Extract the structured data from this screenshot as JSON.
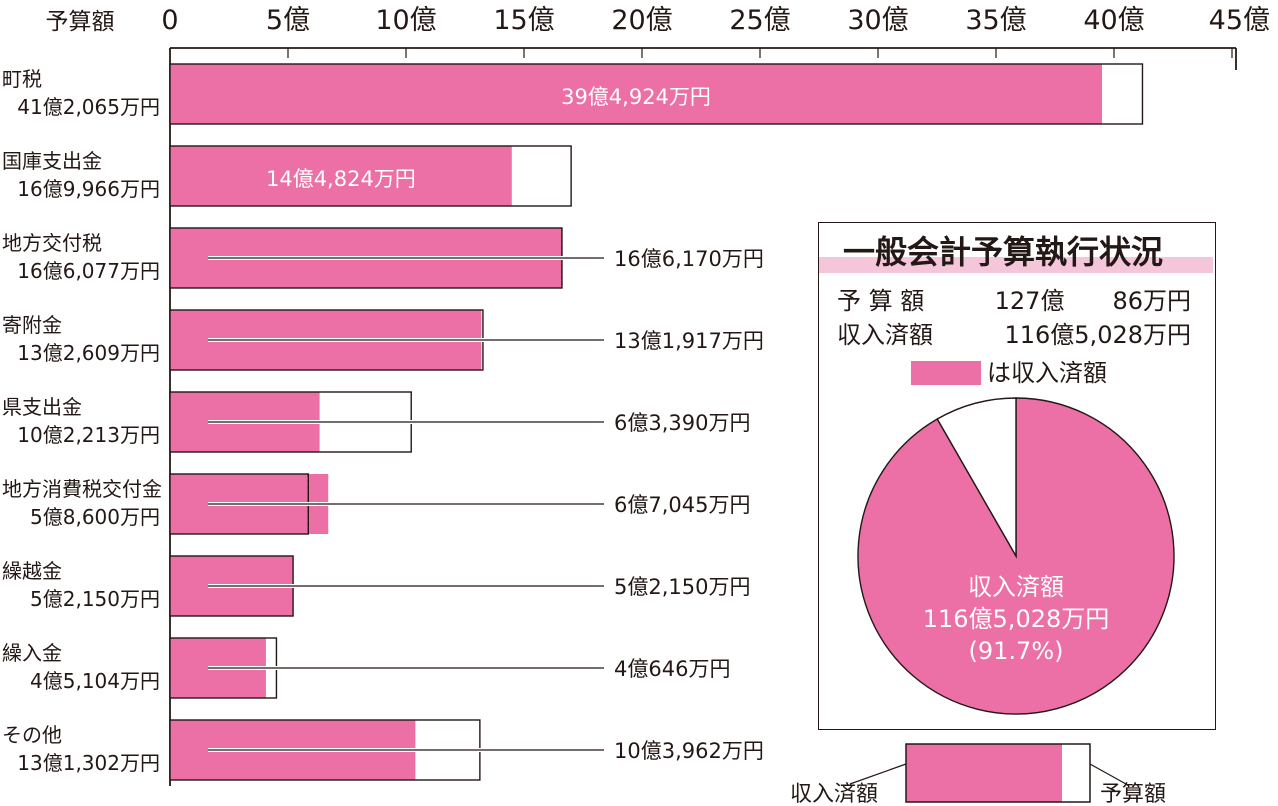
{
  "colors": {
    "received": "#ec6fa6",
    "budget": "#ffffff",
    "ink": "#231815",
    "title_band": "#f5c6da"
  },
  "chart_data": [
    {
      "type": "bar",
      "orientation": "horizontal",
      "axis_label": "予算額",
      "ticks": [
        "0",
        "5億",
        "10億",
        "15億",
        "20億",
        "25億",
        "30億",
        "35億",
        "40億",
        "45億"
      ],
      "xlim": [
        0,
        45
      ],
      "unit": "億円",
      "categories": [
        "町税",
        "国庫支出金",
        "地方交付税",
        "寄附金",
        "県支出金",
        "地方消費税交付金",
        "繰越金",
        "繰入金",
        "その他"
      ],
      "budget_labels": [
        "41億2,065万円",
        "16億9,966万円",
        "16億6,077万円",
        "13億2,609万円",
        "10億2,213万円",
        "5億8,600万円",
        "5億2,150万円",
        "4億5,104万円",
        "13億1,302万円"
      ],
      "received_labels": [
        "39億4,924万円",
        "14億4,824万円",
        "16億6,170万円",
        "13億1,917万円",
        "6億3,390万円",
        "6億7,045万円",
        "5億2,150万円",
        "4億646万円",
        "10億3,962万円"
      ],
      "series": [
        {
          "name": "予算額",
          "values": [
            41.2065,
            16.9966,
            16.6077,
            13.2609,
            10.2213,
            5.86,
            5.215,
            4.5104,
            13.1302
          ]
        },
        {
          "name": "収入済額",
          "values": [
            39.4924,
            14.4824,
            16.617,
            13.1917,
            6.339,
            6.7045,
            5.215,
            4.0646,
            10.3962
          ]
        }
      ]
    },
    {
      "type": "pie",
      "title": "一般会計予算執行状況",
      "summary": [
        {
          "label": "予 算 額",
          "value": "127億　　86万円"
        },
        {
          "label": "収入済額",
          "value": "116億5,028万円"
        }
      ],
      "legend": "は収入済額",
      "slices": [
        {
          "name": "収入済額",
          "value": 91.7
        },
        {
          "name": "",
          "value": 8.3
        }
      ],
      "slice_label": {
        "name": "収入済額",
        "amount": "116億5,028万円",
        "percent": "(91.7%)"
      }
    }
  ],
  "legend_example": {
    "received": "収入済額",
    "budget": "予算額"
  }
}
